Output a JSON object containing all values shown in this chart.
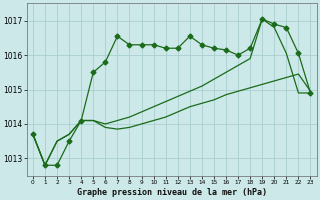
{
  "xlabel": "Graphe pression niveau de la mer (hPa)",
  "xlim": [
    -0.5,
    23.5
  ],
  "ylim": [
    1012.5,
    1017.5
  ],
  "yticks": [
    1013,
    1014,
    1015,
    1016,
    1017
  ],
  "xticks": [
    0,
    1,
    2,
    3,
    4,
    5,
    6,
    7,
    8,
    9,
    10,
    11,
    12,
    13,
    14,
    15,
    16,
    17,
    18,
    19,
    20,
    21,
    22,
    23
  ],
  "bg_color": "#cce8e8",
  "grid_color": "#aacece",
  "line_color": "#1a6b1a",
  "series1_x": [
    0,
    1,
    2,
    3,
    4,
    5,
    6,
    7,
    8,
    9,
    10,
    11,
    12,
    13,
    14,
    15,
    16,
    17,
    18,
    19,
    20,
    21,
    22,
    23
  ],
  "series1_y": [
    1013.7,
    1012.8,
    1012.8,
    1013.5,
    1014.1,
    1015.5,
    1015.8,
    1016.55,
    1016.3,
    1016.3,
    1016.3,
    1016.2,
    1016.2,
    1016.55,
    1016.3,
    1016.2,
    1016.15,
    1016.0,
    1016.2,
    1017.05,
    1016.9,
    1016.8,
    1016.05,
    1014.9
  ],
  "series2_x": [
    0,
    1,
    2,
    3,
    4,
    5,
    6,
    7,
    8,
    9,
    10,
    11,
    12,
    13,
    14,
    15,
    16,
    17,
    18,
    19,
    20,
    21,
    22,
    23
  ],
  "series2_y": [
    1013.7,
    1012.8,
    1013.5,
    1013.7,
    1014.1,
    1014.1,
    1013.9,
    1013.85,
    1013.9,
    1014.0,
    1014.1,
    1014.2,
    1014.35,
    1014.5,
    1014.6,
    1014.7,
    1014.85,
    1014.95,
    1015.05,
    1015.15,
    1015.25,
    1015.35,
    1015.45,
    1014.95
  ],
  "series3_x": [
    0,
    1,
    2,
    3,
    4,
    5,
    6,
    7,
    8,
    9,
    10,
    11,
    12,
    13,
    14,
    15,
    16,
    17,
    18,
    19,
    20,
    21,
    22,
    23
  ],
  "series3_y": [
    1013.7,
    1012.8,
    1013.5,
    1013.7,
    1014.1,
    1014.1,
    1014.0,
    1014.1,
    1014.2,
    1014.35,
    1014.5,
    1014.65,
    1014.8,
    1014.95,
    1015.1,
    1015.3,
    1015.5,
    1015.7,
    1015.9,
    1017.05,
    1016.8,
    1016.05,
    1014.9,
    1014.9
  ],
  "marker": "D",
  "markersize": 2.5,
  "lw": 0.9
}
